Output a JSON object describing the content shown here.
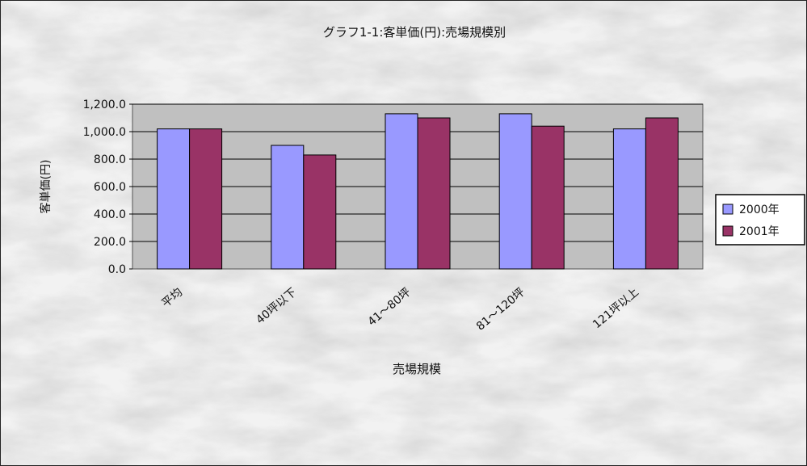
{
  "chart_data": {
    "type": "bar",
    "title": "グラフ1-1:客単価(円):売場規模別",
    "xlabel": "売場規模",
    "ylabel": "客単価(円)",
    "categories": [
      "平均",
      "40坪以下",
      "41～80坪",
      "81～120坪",
      "121坪以上"
    ],
    "ylim": [
      0,
      1200
    ],
    "yticks": [
      "0.0",
      "200.0",
      "400.0",
      "600.0",
      "800.0",
      "1,000.0",
      "1,200.0"
    ],
    "grid": true,
    "legend_position": "right",
    "series": [
      {
        "name": "2000年",
        "color": "#9999ff",
        "values": [
          1020,
          900,
          1130,
          1130,
          1020
        ]
      },
      {
        "name": "2001年",
        "color": "#993366",
        "values": [
          1020,
          830,
          1100,
          1040,
          1100
        ]
      }
    ],
    "plot_background": "#c0c0c0"
  }
}
